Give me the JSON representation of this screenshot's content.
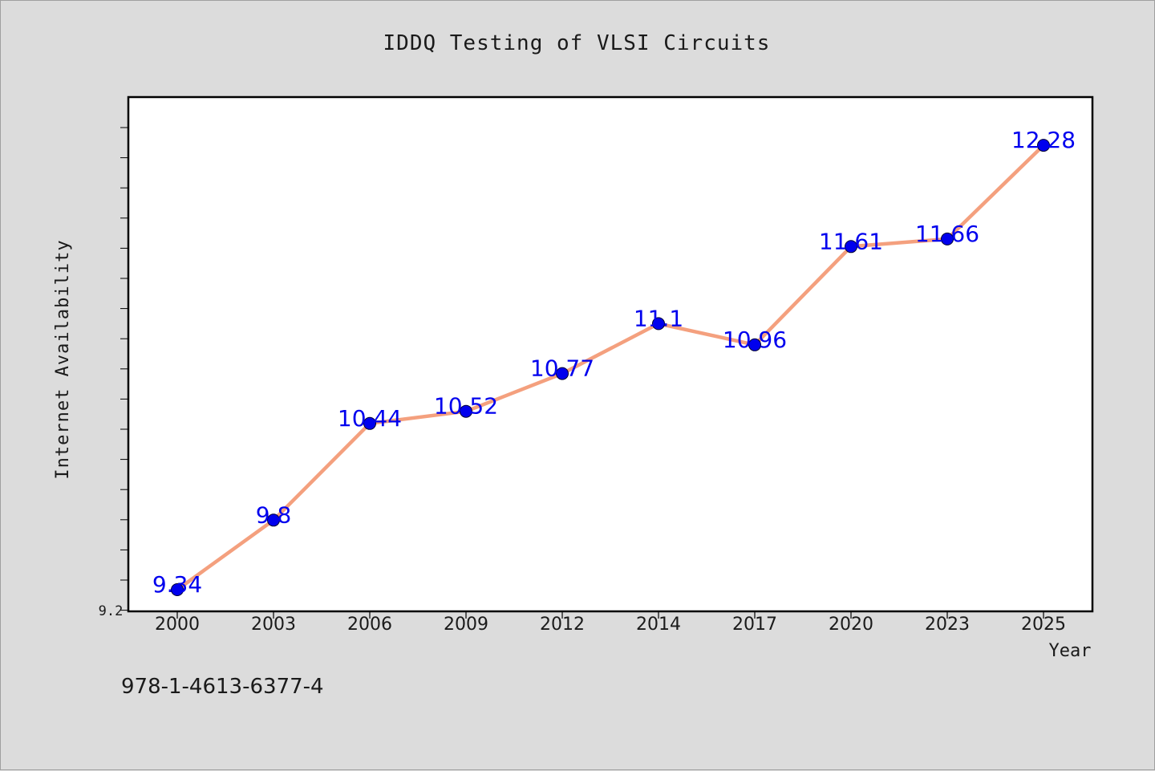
{
  "chart_data": {
    "type": "line",
    "title": "IDDQ Testing of VLSI Circuits",
    "xlabel": "Year",
    "ylabel": "Internet Availability",
    "categories": [
      "2000",
      "2003",
      "2006",
      "2009",
      "2012",
      "2014",
      "2017",
      "2020",
      "2023",
      "2025"
    ],
    "series": [
      {
        "values": [
          9.34,
          9.8,
          10.44,
          10.52,
          10.77,
          11.1,
          10.96,
          11.61,
          11.66,
          12.28
        ]
      }
    ],
    "data_labels": [
      "9.34",
      "9.8",
      "10.44",
      "10.52",
      "10.77",
      "11.1",
      "10.96",
      "11.61",
      "11.66",
      "12.28"
    ],
    "y_tick_labels": [
      "9.2"
    ],
    "ylim": [
      9.2,
      12.6
    ],
    "grid": false,
    "legend": "none"
  },
  "footer_text": "978-1-4613-6377-4",
  "colors": {
    "background": "#dcdcdc",
    "plot_background": "#ffffff",
    "line": "#f4a07e",
    "marker": "#0000ee",
    "data_label": "#0000ee",
    "text": "#1a1a1a"
  }
}
